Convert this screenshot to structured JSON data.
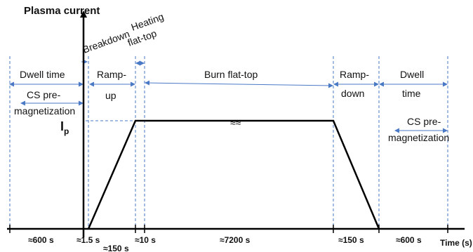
{
  "diagram": {
    "y_axis_title": "Plasma current",
    "x_axis_title": "Time (s)",
    "ip_main": "I",
    "ip_sub": "p",
    "break_symbol": "≈≈",
    "phases": {
      "dwell_left": "Dwell time",
      "cs_left_1": "CS pre-",
      "cs_left_2": "magnetization",
      "breakdown": "Breakdown",
      "rampup_1": "Ramp-",
      "rampup_2": "up",
      "heating_1": "Heating",
      "heating_2": "flat-top",
      "burn": "Burn flat-top",
      "rampdown_1": "Ramp-",
      "rampdown_2": "down",
      "dwell_right_1": "Dwell",
      "dwell_right_2": "time",
      "cs_right_1": "CS pre-",
      "cs_right_2": "magnetization"
    },
    "durations": {
      "d600_left": "≈600 s",
      "d1_5": "≈1.5 s",
      "d150_rampup": "≈150 s",
      "d10": "≈10 s",
      "d7200": "≈7200 s",
      "d150_rampdown": "≈150 s",
      "d600_right": "≈600 s"
    }
  }
}
